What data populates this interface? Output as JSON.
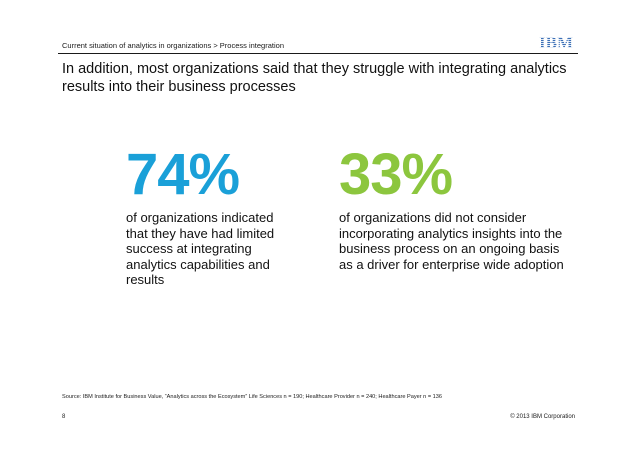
{
  "header": {
    "breadcrumb": "Current situation of analytics in organizations > Process integration",
    "logo_text": "IBM",
    "logo_color": "#3b6fb6"
  },
  "title": "In addition, most organizations said that they struggle with integrating analytics results into their business processes",
  "stats": [
    {
      "value": "74%",
      "color": "#1aa0d8",
      "description": "of organizations indicated that they have had limited success at integrating analytics capabilities and results"
    },
    {
      "value": "33%",
      "color": "#8cc63e",
      "description": "of organizations did not consider incorporating analytics insights into the business process on an ongoing basis as a driver for enterprise wide adoption"
    }
  ],
  "footer": {
    "source": "Source: IBM Institute for Business Value, “Analytics across the Ecosystem” Life Sciences n = 190; Healthcare Provider n = 240; Healthcare Payer n = 136",
    "page_number": "8",
    "copyright": "© 2013 IBM Corporation"
  }
}
